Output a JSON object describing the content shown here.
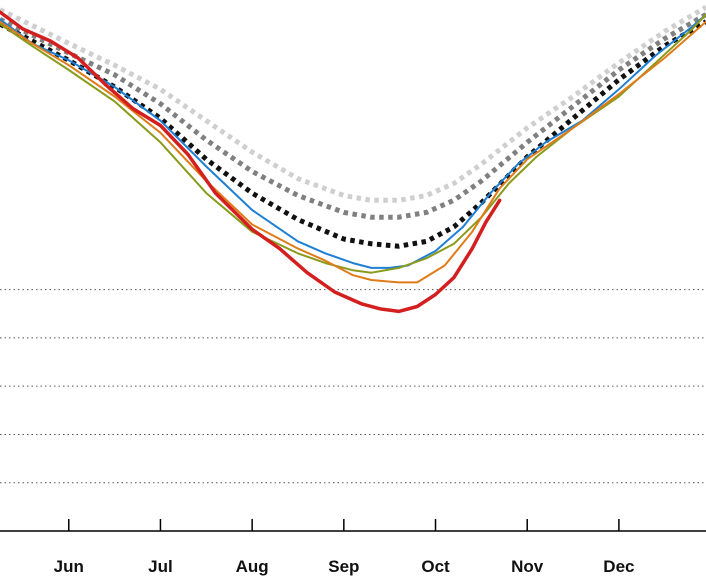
{
  "chart_data": {
    "type": "line",
    "title": "",
    "xlabel": "",
    "ylabel": "",
    "x_tick_labels": [
      "Jun",
      "Jul",
      "Aug",
      "Sep",
      "Oct",
      "Nov",
      "Dec"
    ],
    "x_tick_positions": [
      6.0,
      7.0,
      8.0,
      9.0,
      10.0,
      11.0,
      12.0
    ],
    "xlim": [
      5.25,
      12.95
    ],
    "ylim": [
      0,
      11
    ],
    "grid": "horizontal dotted",
    "gridlines_y": [
      1,
      2,
      3,
      4,
      5
    ],
    "series": [
      {
        "color": "#cfcfcf",
        "style": "dotted",
        "width": 5,
        "x": [
          5.25,
          6.0,
          6.5,
          7.0,
          7.5,
          8.0,
          8.5,
          9.0,
          9.3,
          9.6,
          9.9,
          10.2,
          10.5,
          11.0,
          11.5,
          12.0,
          12.5,
          12.95
        ],
        "y": [
          10.8,
          10.1,
          9.65,
          9.15,
          8.5,
          7.85,
          7.3,
          6.95,
          6.85,
          6.85,
          6.95,
          7.2,
          7.6,
          8.35,
          9.0,
          9.7,
          10.35,
          10.85
        ]
      },
      {
        "color": "#808080",
        "style": "dotted",
        "width": 5,
        "x": [
          5.25,
          6.0,
          6.5,
          7.0,
          7.5,
          8.0,
          8.5,
          9.0,
          9.3,
          9.6,
          9.9,
          10.2,
          10.5,
          11.0,
          11.5,
          12.0,
          12.5,
          12.95
        ],
        "y": [
          10.6,
          9.9,
          9.45,
          8.85,
          8.1,
          7.45,
          6.95,
          6.6,
          6.5,
          6.5,
          6.6,
          6.85,
          7.25,
          8.05,
          8.8,
          9.55,
          10.2,
          10.7
        ]
      },
      {
        "color": "#111111",
        "style": "dotted",
        "width": 5,
        "x": [
          5.25,
          6.0,
          6.5,
          7.0,
          7.5,
          8.0,
          8.5,
          9.0,
          9.3,
          9.6,
          9.9,
          10.2,
          10.5,
          11.0,
          11.5,
          12.0,
          12.5,
          12.95
        ],
        "y": [
          10.5,
          9.75,
          9.2,
          8.55,
          7.7,
          7.0,
          6.45,
          6.05,
          5.95,
          5.9,
          6.0,
          6.3,
          6.8,
          7.75,
          8.55,
          9.35,
          10.05,
          10.55
        ]
      },
      {
        "color": "#1f7fd4",
        "style": "solid",
        "width": 2,
        "x": [
          5.25,
          5.6,
          6.0,
          6.5,
          7.0,
          7.5,
          8.0,
          8.5,
          8.8,
          9.1,
          9.3,
          9.5,
          9.7,
          10.0,
          10.3,
          10.6,
          10.9,
          11.2,
          11.6,
          12.0,
          12.4,
          12.8,
          12.95
        ],
        "y": [
          10.6,
          10.1,
          9.75,
          9.2,
          8.5,
          7.55,
          6.65,
          6.0,
          5.75,
          5.55,
          5.45,
          5.45,
          5.5,
          5.8,
          6.3,
          7.0,
          7.6,
          8.05,
          8.5,
          9.15,
          9.85,
          10.45,
          10.7
        ]
      },
      {
        "color": "#8a9a1a",
        "style": "solid",
        "width": 2,
        "x": [
          5.25,
          5.6,
          6.0,
          6.5,
          7.0,
          7.5,
          8.0,
          8.5,
          8.8,
          9.1,
          9.3,
          9.6,
          9.9,
          10.2,
          10.5,
          10.8,
          11.1,
          11.5,
          12.0,
          12.4,
          12.8,
          12.95
        ],
        "y": [
          10.5,
          10.05,
          9.55,
          8.9,
          8.05,
          7.0,
          6.2,
          5.75,
          5.55,
          5.4,
          5.35,
          5.45,
          5.65,
          5.95,
          6.5,
          7.2,
          7.75,
          8.35,
          9.0,
          9.7,
          10.4,
          10.7
        ]
      },
      {
        "color": "#e07b1a",
        "style": "solid",
        "width": 2,
        "x": [
          5.25,
          5.6,
          6.0,
          6.5,
          7.0,
          7.5,
          8.0,
          8.5,
          8.8,
          9.1,
          9.3,
          9.6,
          9.8,
          10.1,
          10.4,
          10.7,
          11.0,
          11.5,
          12.0,
          12.5,
          12.95
        ],
        "y": [
          10.55,
          10.1,
          9.65,
          9.0,
          8.25,
          7.25,
          6.35,
          5.85,
          5.6,
          5.3,
          5.2,
          5.15,
          5.15,
          5.5,
          6.2,
          7.1,
          7.7,
          8.35,
          9.05,
          9.8,
          10.55
        ]
      },
      {
        "color": "#d41f1f",
        "style": "solid",
        "width": 3.5,
        "x": [
          5.25,
          5.5,
          5.8,
          6.1,
          6.4,
          6.7,
          7.0,
          7.3,
          7.6,
          8.0,
          8.3,
          8.6,
          8.9,
          9.2,
          9.4,
          9.6,
          9.8,
          10.0,
          10.2,
          10.4,
          10.55,
          10.7
        ],
        "y": [
          10.75,
          10.4,
          10.15,
          9.8,
          9.25,
          8.75,
          8.4,
          7.8,
          7.0,
          6.25,
          5.85,
          5.35,
          4.95,
          4.7,
          4.6,
          4.55,
          4.65,
          4.9,
          5.25,
          5.85,
          6.4,
          6.85
        ]
      }
    ]
  }
}
